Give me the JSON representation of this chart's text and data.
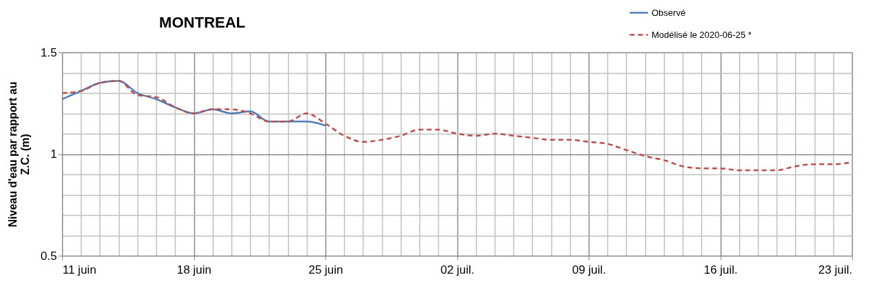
{
  "chart_data": {
    "type": "line",
    "title": "MONTREAL",
    "ylabel": "Niveau d'eau par rapport au Z.C. (m)",
    "x": [
      "2020-06-11",
      "2020-06-12",
      "2020-06-13",
      "2020-06-14",
      "2020-06-15",
      "2020-06-16",
      "2020-06-17",
      "2020-06-18",
      "2020-06-19",
      "2020-06-20",
      "2020-06-21",
      "2020-06-22",
      "2020-06-23",
      "2020-06-24",
      "2020-06-25",
      "2020-06-26",
      "2020-06-27",
      "2020-06-28",
      "2020-06-29",
      "2020-06-30",
      "2020-07-01",
      "2020-07-02",
      "2020-07-03",
      "2020-07-04",
      "2020-07-05",
      "2020-07-06",
      "2020-07-07",
      "2020-07-08",
      "2020-07-09",
      "2020-07-10",
      "2020-07-11",
      "2020-07-12",
      "2020-07-13",
      "2020-07-14",
      "2020-07-15",
      "2020-07-16",
      "2020-07-17",
      "2020-07-18",
      "2020-07-19",
      "2020-07-20",
      "2020-07-21",
      "2020-07-22",
      "2020-07-23"
    ],
    "series": [
      {
        "name": "Observé",
        "color": "#4a7ebb",
        "line_style": "solid",
        "values": [
          1.27,
          1.31,
          1.35,
          1.36,
          1.3,
          1.27,
          1.23,
          1.2,
          1.22,
          1.2,
          1.21,
          1.16,
          1.16,
          1.16,
          1.14,
          null,
          null,
          null,
          null,
          null,
          null,
          null,
          null,
          null,
          null,
          null,
          null,
          null,
          null,
          null,
          null,
          null,
          null,
          null,
          null,
          null,
          null,
          null,
          null,
          null,
          null,
          null,
          null
        ]
      },
      {
        "name": "Modélisé le 2020-06-25 *",
        "color": "#be4b48",
        "line_style": "dashed",
        "values": [
          1.3,
          1.31,
          1.35,
          1.36,
          1.29,
          1.28,
          1.23,
          1.2,
          1.22,
          1.22,
          1.2,
          1.16,
          1.16,
          1.2,
          1.15,
          1.09,
          1.06,
          1.07,
          1.09,
          1.12,
          1.12,
          1.1,
          1.09,
          1.1,
          1.09,
          1.08,
          1.07,
          1.07,
          1.06,
          1.05,
          1.02,
          0.99,
          0.97,
          0.94,
          0.93,
          0.93,
          0.92,
          0.92,
          0.92,
          0.94,
          0.95,
          0.95,
          0.96
        ]
      }
    ],
    "xlim": [
      "2020-06-11",
      "2020-07-23"
    ],
    "xticks": [
      {
        "value": "2020-06-11",
        "label": "11 juin"
      },
      {
        "value": "2020-06-12",
        "label": null
      },
      {
        "value": "2020-06-13",
        "label": null
      },
      {
        "value": "2020-06-14",
        "label": null
      },
      {
        "value": "2020-06-15",
        "label": null
      },
      {
        "value": "2020-06-16",
        "label": null
      },
      {
        "value": "2020-06-17",
        "label": null
      },
      {
        "value": "2020-06-18",
        "label": "18 juin"
      },
      {
        "value": "2020-06-19",
        "label": null
      },
      {
        "value": "2020-06-20",
        "label": null
      },
      {
        "value": "2020-06-21",
        "label": null
      },
      {
        "value": "2020-06-22",
        "label": null
      },
      {
        "value": "2020-06-23",
        "label": null
      },
      {
        "value": "2020-06-24",
        "label": null
      },
      {
        "value": "2020-06-25",
        "label": "25 juin"
      },
      {
        "value": "2020-06-26",
        "label": null
      },
      {
        "value": "2020-06-27",
        "label": null
      },
      {
        "value": "2020-06-28",
        "label": null
      },
      {
        "value": "2020-06-29",
        "label": null
      },
      {
        "value": "2020-06-30",
        "label": null
      },
      {
        "value": "2020-07-01",
        "label": null
      },
      {
        "value": "2020-07-02",
        "label": "02 juil."
      },
      {
        "value": "2020-07-03",
        "label": null
      },
      {
        "value": "2020-07-04",
        "label": null
      },
      {
        "value": "2020-07-05",
        "label": null
      },
      {
        "value": "2020-07-06",
        "label": null
      },
      {
        "value": "2020-07-07",
        "label": null
      },
      {
        "value": "2020-07-08",
        "label": null
      },
      {
        "value": "2020-07-09",
        "label": "09 juil."
      },
      {
        "value": "2020-07-10",
        "label": null
      },
      {
        "value": "2020-07-11",
        "label": null
      },
      {
        "value": "2020-07-12",
        "label": null
      },
      {
        "value": "2020-07-13",
        "label": null
      },
      {
        "value": "2020-07-14",
        "label": null
      },
      {
        "value": "2020-07-15",
        "label": null
      },
      {
        "value": "2020-07-16",
        "label": "16 juil."
      },
      {
        "value": "2020-07-17",
        "label": null
      },
      {
        "value": "2020-07-18",
        "label": null
      },
      {
        "value": "2020-07-19",
        "label": null
      },
      {
        "value": "2020-07-20",
        "label": null
      },
      {
        "value": "2020-07-21",
        "label": null
      },
      {
        "value": "2020-07-22",
        "label": null
      },
      {
        "value": "2020-07-23",
        "label": "23 juil."
      }
    ],
    "ylim": [
      0.5,
      1.5
    ],
    "yticks": [
      0.5,
      {
        "value": 0.6,
        "label": null
      },
      {
        "value": 0.7,
        "label": null
      },
      {
        "value": 0.8,
        "label": null
      },
      {
        "value": 0.9,
        "label": null
      },
      1,
      {
        "value": 1.1,
        "label": null
      },
      {
        "value": 1.2,
        "label": null
      },
      {
        "value": 1.3,
        "label": null
      },
      {
        "value": 1.4,
        "label": null
      },
      1.5
    ],
    "grid": true,
    "legend": "top right",
    "marker": "none"
  }
}
